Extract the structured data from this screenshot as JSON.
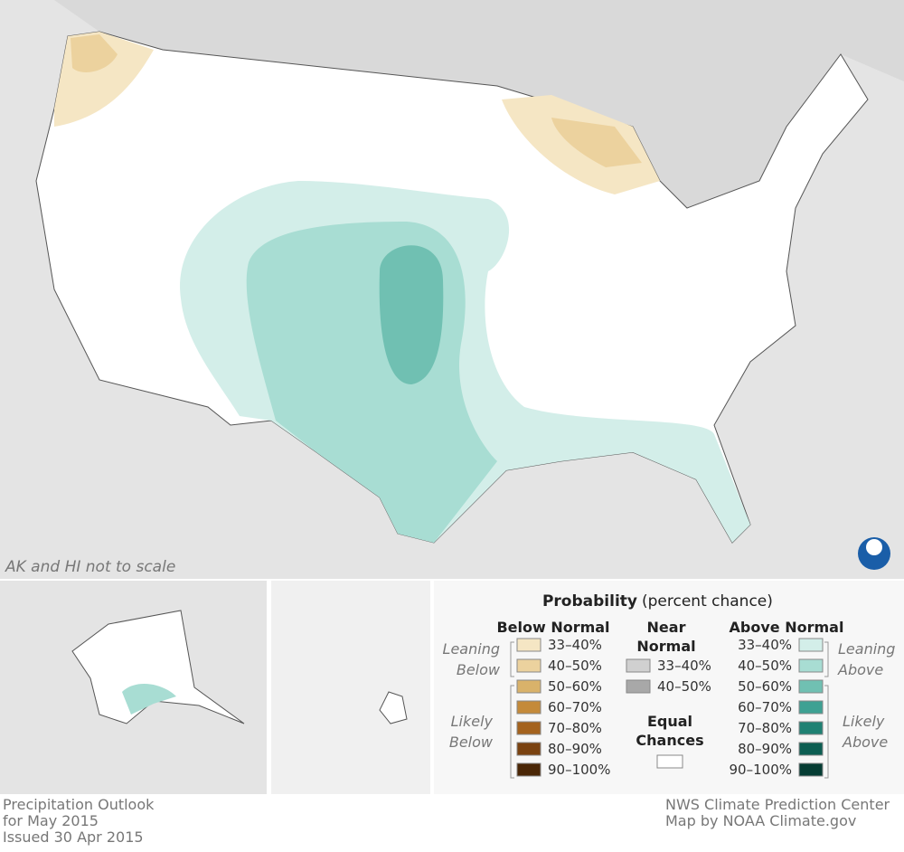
{
  "map_note": "AK and HI not to scale",
  "legend": {
    "title": "Probability",
    "subtitle": "(percent chance)",
    "below": {
      "heading": "Below Normal",
      "leaning": [
        "Leaning",
        "Below"
      ],
      "likely": [
        "Likely",
        "Below"
      ],
      "ranges": [
        "33–40%",
        "40–50%",
        "50–60%",
        "60–70%",
        "70–80%",
        "80–90%",
        "90–100%"
      ],
      "colors": [
        "#f5e6c4",
        "#ecd29e",
        "#d9b26a",
        "#c48a3a",
        "#a4621d",
        "#7a4210",
        "#4a2606"
      ]
    },
    "near": {
      "heading": [
        "Near",
        "Normal"
      ],
      "ranges": [
        "33–40%",
        "40–50%"
      ],
      "colors": [
        "#d0d0d0",
        "#a8a8a8"
      ]
    },
    "equal": {
      "heading": [
        "Equal",
        "Chances"
      ],
      "color": "#ffffff"
    },
    "above": {
      "heading": "Above Normal",
      "leaning": [
        "Leaning",
        "Above"
      ],
      "likely": [
        "Likely",
        "Above"
      ],
      "ranges": [
        "33–40%",
        "40–50%",
        "50–60%",
        "60–70%",
        "70–80%",
        "80–90%",
        "90–100%"
      ],
      "colors": [
        "#d3eee9",
        "#a8ddd3",
        "#70c0b2",
        "#3ea193",
        "#1f8173",
        "#0c5e52",
        "#053c33"
      ]
    }
  },
  "footer": {
    "left": [
      "Precipitation Outlook",
      "for May 2015",
      "Issued 30 Apr 2015"
    ],
    "right": [
      "NWS Climate Prediction Center",
      "Map by NOAA Climate.gov"
    ]
  }
}
